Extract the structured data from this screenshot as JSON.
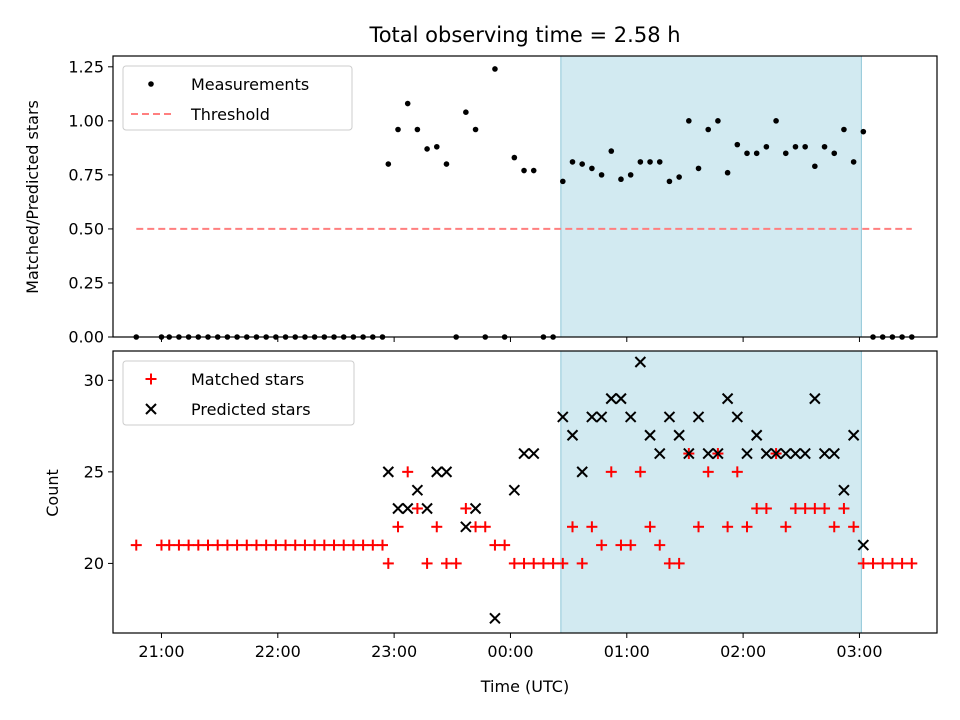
{
  "chart_data": [
    {
      "type": "scatter",
      "title": "Total observing time = 2.58 h",
      "xlabel": "",
      "ylabel": "Matched/Predicted stars",
      "xaxis": "time",
      "xlim": [
        "20:35",
        "03:40"
      ],
      "ylim": [
        0,
        1.3
      ],
      "yticks": [
        "0.00",
        "0.25",
        "0.50",
        "0.75",
        "1.00",
        "1.25"
      ],
      "grid": false,
      "legend_position": "top-left",
      "highlight_span": {
        "from": "00:26",
        "to": "03:01",
        "color": "#add8e6"
      },
      "colors": {
        "measurements": "#000000",
        "threshold": "#ff7f7f"
      },
      "series": [
        {
          "name": "Measurements",
          "marker": "dot",
          "points": [
            [
              "20:47",
              0
            ],
            [
              "21:00",
              0
            ],
            [
              "21:04",
              0
            ],
            [
              "21:09",
              0
            ],
            [
              "21:14",
              0
            ],
            [
              "21:19",
              0
            ],
            [
              "21:24",
              0
            ],
            [
              "21:29",
              0
            ],
            [
              "21:34",
              0
            ],
            [
              "21:39",
              0
            ],
            [
              "21:44",
              0
            ],
            [
              "21:49",
              0
            ],
            [
              "21:54",
              0
            ],
            [
              "21:59",
              0
            ],
            [
              "22:04",
              0
            ],
            [
              "22:09",
              0
            ],
            [
              "22:14",
              0
            ],
            [
              "22:19",
              0
            ],
            [
              "22:24",
              0
            ],
            [
              "22:29",
              0
            ],
            [
              "22:34",
              0
            ],
            [
              "22:39",
              0
            ],
            [
              "22:44",
              0
            ],
            [
              "22:49",
              0
            ],
            [
              "22:54",
              0
            ],
            [
              "22:57",
              0.8
            ],
            [
              "23:02",
              0.96
            ],
            [
              "23:07",
              1.08
            ],
            [
              "23:12",
              0.96
            ],
            [
              "23:17",
              0.87
            ],
            [
              "23:22",
              0.88
            ],
            [
              "23:27",
              0.8
            ],
            [
              "23:32",
              0
            ],
            [
              "23:37",
              1.04
            ],
            [
              "23:42",
              0.96
            ],
            [
              "23:47",
              0
            ],
            [
              "23:52",
              1.24
            ],
            [
              "23:57",
              0
            ],
            [
              "00:02",
              0.83
            ],
            [
              "00:07",
              0.77
            ],
            [
              "00:12",
              0.77
            ],
            [
              "00:17",
              0
            ],
            [
              "00:22",
              0
            ],
            [
              "00:27",
              0.72
            ],
            [
              "00:32",
              0.81
            ],
            [
              "00:37",
              0.8
            ],
            [
              "00:42",
              0.78
            ],
            [
              "00:47",
              0.75
            ],
            [
              "00:52",
              0.86
            ],
            [
              "00:57",
              0.73
            ],
            [
              "01:02",
              0.75
            ],
            [
              "01:07",
              0.81
            ],
            [
              "01:12",
              0.81
            ],
            [
              "01:17",
              0.81
            ],
            [
              "01:22",
              0.72
            ],
            [
              "01:27",
              0.74
            ],
            [
              "01:32",
              1.0
            ],
            [
              "01:37",
              0.78
            ],
            [
              "01:42",
              0.96
            ],
            [
              "01:47",
              1.0
            ],
            [
              "01:52",
              0.76
            ],
            [
              "01:57",
              0.89
            ],
            [
              "02:02",
              0.85
            ],
            [
              "02:07",
              0.85
            ],
            [
              "02:12",
              0.88
            ],
            [
              "02:17",
              1.0
            ],
            [
              "02:22",
              0.85
            ],
            [
              "02:27",
              0.88
            ],
            [
              "02:32",
              0.88
            ],
            [
              "02:37",
              0.79
            ],
            [
              "02:42",
              0.88
            ],
            [
              "02:47",
              0.85
            ],
            [
              "02:52",
              0.96
            ],
            [
              "02:57",
              0.81
            ],
            [
              "03:02",
              0.95
            ],
            [
              "03:07",
              0
            ],
            [
              "03:12",
              0
            ],
            [
              "03:17",
              0
            ],
            [
              "03:22",
              0
            ],
            [
              "03:27",
              0
            ]
          ]
        },
        {
          "name": "Threshold",
          "marker": "dashed-line",
          "points": [
            [
              "20:47",
              0.5
            ],
            [
              "03:27",
              0.5
            ]
          ]
        }
      ]
    },
    {
      "type": "scatter",
      "title": "",
      "xlabel": "Time (UTC)",
      "ylabel": "Count",
      "xaxis": "time",
      "xlim": [
        "20:35",
        "03:40"
      ],
      "ylim": [
        16.2,
        31.6
      ],
      "yticks": [
        "20",
        "25",
        "30"
      ],
      "xticks": [
        "21:00",
        "22:00",
        "23:00",
        "00:00",
        "01:00",
        "02:00",
        "03:00"
      ],
      "grid": false,
      "legend_position": "top-left",
      "highlight_span": {
        "from": "00:26",
        "to": "03:01",
        "color": "#add8e6"
      },
      "colors": {
        "matched": "#ff0000",
        "predicted": "#000000"
      },
      "series": [
        {
          "name": "Matched stars",
          "marker": "plus",
          "points": [
            [
              "20:47",
              21
            ],
            [
              "21:00",
              21
            ],
            [
              "21:04",
              21
            ],
            [
              "21:09",
              21
            ],
            [
              "21:14",
              21
            ],
            [
              "21:19",
              21
            ],
            [
              "21:24",
              21
            ],
            [
              "21:29",
              21
            ],
            [
              "21:34",
              21
            ],
            [
              "21:39",
              21
            ],
            [
              "21:44",
              21
            ],
            [
              "21:49",
              21
            ],
            [
              "21:54",
              21
            ],
            [
              "21:59",
              21
            ],
            [
              "22:04",
              21
            ],
            [
              "22:09",
              21
            ],
            [
              "22:14",
              21
            ],
            [
              "22:19",
              21
            ],
            [
              "22:24",
              21
            ],
            [
              "22:29",
              21
            ],
            [
              "22:34",
              21
            ],
            [
              "22:39",
              21
            ],
            [
              "22:44",
              21
            ],
            [
              "22:49",
              21
            ],
            [
              "22:54",
              21
            ],
            [
              "22:57",
              20
            ],
            [
              "23:02",
              22
            ],
            [
              "23:07",
              25
            ],
            [
              "23:12",
              23
            ],
            [
              "23:17",
              20
            ],
            [
              "23:22",
              22
            ],
            [
              "23:27",
              20
            ],
            [
              "23:32",
              20
            ],
            [
              "23:37",
              23
            ],
            [
              "23:42",
              22
            ],
            [
              "23:47",
              22
            ],
            [
              "23:52",
              21
            ],
            [
              "23:57",
              21
            ],
            [
              "00:02",
              20
            ],
            [
              "00:07",
              20
            ],
            [
              "00:12",
              20
            ],
            [
              "00:17",
              20
            ],
            [
              "00:22",
              20
            ],
            [
              "00:27",
              20
            ],
            [
              "00:32",
              22
            ],
            [
              "00:37",
              20
            ],
            [
              "00:42",
              22
            ],
            [
              "00:47",
              21
            ],
            [
              "00:52",
              25
            ],
            [
              "00:57",
              21
            ],
            [
              "01:02",
              21
            ],
            [
              "01:07",
              25
            ],
            [
              "01:12",
              22
            ],
            [
              "01:17",
              21
            ],
            [
              "01:22",
              20
            ],
            [
              "01:27",
              20
            ],
            [
              "01:32",
              26
            ],
            [
              "01:37",
              22
            ],
            [
              "01:42",
              25
            ],
            [
              "01:47",
              26
            ],
            [
              "01:52",
              22
            ],
            [
              "01:57",
              25
            ],
            [
              "02:02",
              22
            ],
            [
              "02:07",
              23
            ],
            [
              "02:12",
              23
            ],
            [
              "02:17",
              26
            ],
            [
              "02:22",
              22
            ],
            [
              "02:27",
              23
            ],
            [
              "02:32",
              23
            ],
            [
              "02:37",
              23
            ],
            [
              "02:42",
              23
            ],
            [
              "02:47",
              22
            ],
            [
              "02:52",
              23
            ],
            [
              "02:57",
              22
            ],
            [
              "03:02",
              20
            ],
            [
              "03:07",
              20
            ],
            [
              "03:12",
              20
            ],
            [
              "03:17",
              20
            ],
            [
              "03:22",
              20
            ],
            [
              "03:27",
              20
            ]
          ]
        },
        {
          "name": "Predicted stars",
          "marker": "x",
          "points": [
            [
              "22:57",
              25
            ],
            [
              "23:02",
              23
            ],
            [
              "23:07",
              23
            ],
            [
              "23:12",
              24
            ],
            [
              "23:17",
              23
            ],
            [
              "23:22",
              25
            ],
            [
              "23:27",
              25
            ],
            [
              "23:37",
              22
            ],
            [
              "23:42",
              23
            ],
            [
              "23:52",
              17
            ],
            [
              "00:02",
              24
            ],
            [
              "00:07",
              26
            ],
            [
              "00:12",
              26
            ],
            [
              "00:27",
              28
            ],
            [
              "00:32",
              27
            ],
            [
              "00:37",
              25
            ],
            [
              "00:42",
              28
            ],
            [
              "00:47",
              28
            ],
            [
              "00:52",
              29
            ],
            [
              "00:57",
              29
            ],
            [
              "01:02",
              28
            ],
            [
              "01:07",
              31
            ],
            [
              "01:12",
              27
            ],
            [
              "01:17",
              26
            ],
            [
              "01:22",
              28
            ],
            [
              "01:27",
              27
            ],
            [
              "01:32",
              26
            ],
            [
              "01:37",
              28
            ],
            [
              "01:42",
              26
            ],
            [
              "01:47",
              26
            ],
            [
              "01:52",
              29
            ],
            [
              "01:57",
              28
            ],
            [
              "02:02",
              26
            ],
            [
              "02:07",
              27
            ],
            [
              "02:12",
              26
            ],
            [
              "02:17",
              26
            ],
            [
              "02:22",
              26
            ],
            [
              "02:27",
              26
            ],
            [
              "02:32",
              26
            ],
            [
              "02:37",
              29
            ],
            [
              "02:42",
              26
            ],
            [
              "02:47",
              26
            ],
            [
              "02:52",
              24
            ],
            [
              "02:57",
              27
            ],
            [
              "03:02",
              21
            ]
          ]
        }
      ]
    }
  ]
}
